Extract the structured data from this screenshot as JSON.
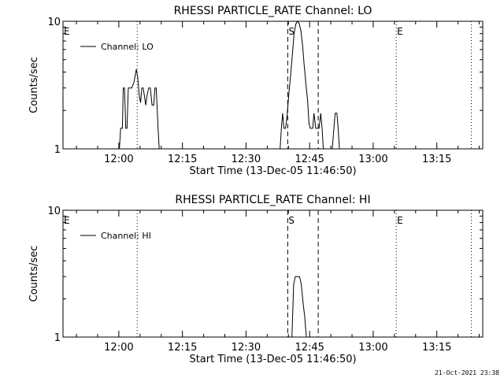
{
  "footer_timestamp": "21-Oct-2021 23:38",
  "chart_data": [
    {
      "type": "line",
      "title": "RHESSI PARTICLE_RATE Channel: LO",
      "xlabel": "Start Time (13-Dec-05 11:46:50)",
      "ylabel": "Counts/sec",
      "x_unit": "minutes after 11:46:50",
      "xlim": [
        0,
        99
      ],
      "ylim": [
        1,
        10
      ],
      "yscale": "log",
      "ytick_labels": [
        "1",
        "10"
      ],
      "xtick_labels": [
        "12:00",
        "12:15",
        "12:30",
        "12:45",
        "13:00",
        "13:15"
      ],
      "legend": {
        "position": "top-left",
        "entries": [
          "Channel: LO"
        ]
      },
      "event_lines": [
        {
          "style": "dotted",
          "x": 0,
          "label": "E"
        },
        {
          "style": "dotted",
          "x": 17.5,
          "label": ""
        },
        {
          "style": "dashed",
          "x": 53,
          "label": "S"
        },
        {
          "style": "dashed",
          "x": 60.2,
          "label": ""
        },
        {
          "style": "dotted",
          "x": 78.6,
          "label": "E"
        },
        {
          "style": "dotted",
          "x": 96.3,
          "label": ""
        }
      ],
      "series": [
        {
          "x": [
            0,
            13.3,
            13.6,
            14.0,
            14.2,
            14.5,
            14.8,
            15.1,
            15.4,
            15.8,
            16.2,
            16.7,
            17.0,
            17.3,
            17.6,
            18.0,
            18.3,
            18.6,
            18.9,
            19.2,
            19.5,
            19.8,
            20.2,
            20.6,
            21.0,
            21.4,
            21.7,
            22.0,
            22.4,
            22.7,
            51.2,
            51.5,
            51.8,
            52.1,
            52.5,
            52.9,
            53.3,
            53.7,
            54.1,
            54.5,
            54.9,
            55.3,
            55.7,
            56.1,
            56.5,
            56.9,
            57.3,
            57.7,
            58.0,
            58.3,
            58.6,
            58.9,
            59.2,
            59.6,
            60.0,
            60.4,
            60.8,
            61.1,
            61.4,
            63.5,
            63.9,
            64.2,
            64.6,
            64.9,
            65.2,
            99
          ],
          "y": [
            1,
            1,
            1.45,
            1.45,
            3,
            3,
            1.45,
            1.45,
            3,
            3,
            3,
            3.3,
            3.7,
            4.2,
            3.7,
            2.6,
            2.3,
            3,
            3,
            2.6,
            2.2,
            2.6,
            3,
            3,
            2.2,
            2.2,
            3,
            3,
            1.5,
            1,
            1,
            1.45,
            1.9,
            1.45,
            1.45,
            1.9,
            2.8,
            3.8,
            5.5,
            8,
            9.5,
            10,
            9.6,
            8.5,
            6.5,
            4.5,
            3.2,
            2.4,
            1.6,
            1.45,
            1.45,
            1.45,
            1.9,
            1.45,
            1.45,
            1.45,
            1.9,
            1.45,
            1,
            1,
            1.45,
            1.9,
            1.9,
            1.45,
            1,
            1
          ]
        }
      ]
    },
    {
      "type": "line",
      "title": "RHESSI PARTICLE_RATE Channel: HI",
      "xlabel": "Start Time (13-Dec-05 11:46:50)",
      "ylabel": "Counts/sec",
      "x_unit": "minutes after 11:46:50",
      "xlim": [
        0,
        99
      ],
      "ylim": [
        1,
        10
      ],
      "yscale": "log",
      "ytick_labels": [
        "1",
        "10"
      ],
      "xtick_labels": [
        "12:00",
        "12:15",
        "12:30",
        "12:45",
        "13:00",
        "13:15"
      ],
      "legend": {
        "position": "top-left",
        "entries": [
          "Channel: HI"
        ]
      },
      "event_lines": [
        {
          "style": "dotted",
          "x": 0,
          "label": "E"
        },
        {
          "style": "dotted",
          "x": 17.5,
          "label": ""
        },
        {
          "style": "dashed",
          "x": 53,
          "label": "S"
        },
        {
          "style": "dashed",
          "x": 60.2,
          "label": ""
        },
        {
          "style": "dotted",
          "x": 78.6,
          "label": "E"
        },
        {
          "style": "dotted",
          "x": 96.3,
          "label": ""
        }
      ],
      "series": [
        {
          "x": [
            0,
            54.0,
            54.4,
            54.8,
            55.2,
            55.8,
            56.2,
            56.6,
            57.0,
            57.4,
            99
          ],
          "y": [
            1,
            1,
            2.6,
            3,
            3,
            3,
            2.6,
            1.9,
            1.45,
            1,
            1
          ]
        }
      ]
    }
  ]
}
